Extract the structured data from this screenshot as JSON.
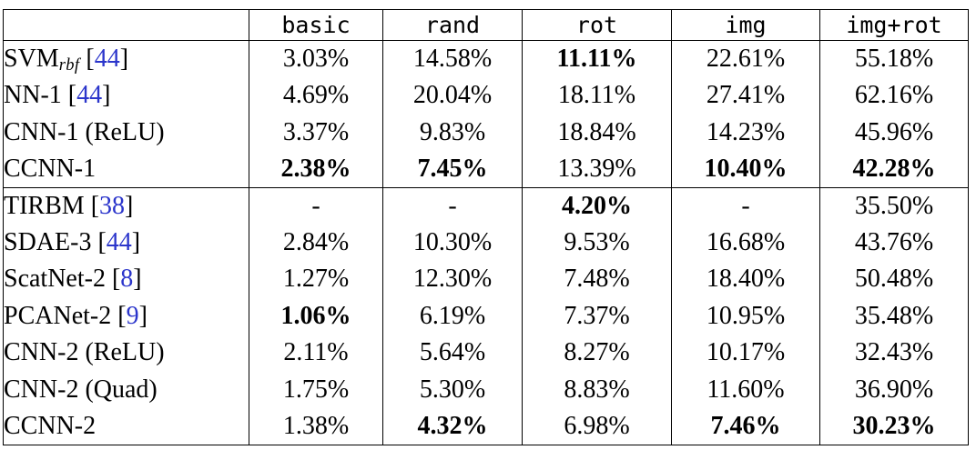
{
  "colors": {
    "text": "#000000",
    "border": "#000000",
    "citation_blue": "#2b35cb",
    "background": "#ffffff"
  },
  "citation_brackets": {
    "open": "[",
    "close": "]"
  },
  "table": {
    "corner_label": "",
    "columns": [
      "basic",
      "rand",
      "rot",
      "img",
      "img+rot"
    ],
    "groups": [
      {
        "rows": [
          {
            "label": {
              "text": "SVM",
              "subscript": "rbf",
              "citation": "44"
            },
            "cells": [
              {
                "v": "3.03%",
                "bold": false
              },
              {
                "v": "14.58%",
                "bold": false
              },
              {
                "v": "11.11%",
                "bold": true
              },
              {
                "v": "22.61%",
                "bold": false
              },
              {
                "v": "55.18%",
                "bold": false
              }
            ]
          },
          {
            "label": {
              "text": "NN-1",
              "subscript": null,
              "citation": "44"
            },
            "cells": [
              {
                "v": "4.69%",
                "bold": false
              },
              {
                "v": "20.04%",
                "bold": false
              },
              {
                "v": "18.11%",
                "bold": false
              },
              {
                "v": "27.41%",
                "bold": false
              },
              {
                "v": "62.16%",
                "bold": false
              }
            ]
          },
          {
            "label": {
              "text": "CNN-1 (ReLU)",
              "subscript": null,
              "citation": null
            },
            "cells": [
              {
                "v": "3.37%",
                "bold": false
              },
              {
                "v": "9.83%",
                "bold": false
              },
              {
                "v": "18.84%",
                "bold": false
              },
              {
                "v": "14.23%",
                "bold": false
              },
              {
                "v": "45.96%",
                "bold": false
              }
            ]
          },
          {
            "label": {
              "text": "CCNN-1",
              "subscript": null,
              "citation": null
            },
            "cells": [
              {
                "v": "2.38%",
                "bold": true
              },
              {
                "v": "7.45%",
                "bold": true
              },
              {
                "v": "13.39%",
                "bold": false
              },
              {
                "v": "10.40%",
                "bold": true
              },
              {
                "v": "42.28%",
                "bold": true
              }
            ]
          }
        ]
      },
      {
        "rows": [
          {
            "label": {
              "text": "TIRBM",
              "subscript": null,
              "citation": "38"
            },
            "cells": [
              {
                "v": "-",
                "bold": false
              },
              {
                "v": "-",
                "bold": false
              },
              {
                "v": "4.20%",
                "bold": true
              },
              {
                "v": "-",
                "bold": false
              },
              {
                "v": "35.50%",
                "bold": false
              }
            ]
          },
          {
            "label": {
              "text": "SDAE-3",
              "subscript": null,
              "citation": "44"
            },
            "cells": [
              {
                "v": "2.84%",
                "bold": false
              },
              {
                "v": "10.30%",
                "bold": false
              },
              {
                "v": "9.53%",
                "bold": false
              },
              {
                "v": "16.68%",
                "bold": false
              },
              {
                "v": "43.76%",
                "bold": false
              }
            ]
          },
          {
            "label": {
              "text": "ScatNet-2",
              "subscript": null,
              "citation": "8"
            },
            "cells": [
              {
                "v": "1.27%",
                "bold": false
              },
              {
                "v": "12.30%",
                "bold": false
              },
              {
                "v": "7.48%",
                "bold": false
              },
              {
                "v": "18.40%",
                "bold": false
              },
              {
                "v": "50.48%",
                "bold": false
              }
            ]
          },
          {
            "label": {
              "text": "PCANet-2",
              "subscript": null,
              "citation": "9"
            },
            "cells": [
              {
                "v": "1.06%",
                "bold": true
              },
              {
                "v": "6.19%",
                "bold": false
              },
              {
                "v": "7.37%",
                "bold": false
              },
              {
                "v": "10.95%",
                "bold": false
              },
              {
                "v": "35.48%",
                "bold": false
              }
            ]
          },
          {
            "label": {
              "text": "CNN-2 (ReLU)",
              "subscript": null,
              "citation": null
            },
            "cells": [
              {
                "v": "2.11%",
                "bold": false
              },
              {
                "v": "5.64%",
                "bold": false
              },
              {
                "v": "8.27%",
                "bold": false
              },
              {
                "v": "10.17%",
                "bold": false
              },
              {
                "v": "32.43%",
                "bold": false
              }
            ]
          },
          {
            "label": {
              "text": "CNN-2 (Quad)",
              "subscript": null,
              "citation": null
            },
            "cells": [
              {
                "v": "1.75%",
                "bold": false
              },
              {
                "v": "5.30%",
                "bold": false
              },
              {
                "v": "8.83%",
                "bold": false
              },
              {
                "v": "11.60%",
                "bold": false
              },
              {
                "v": "36.90%",
                "bold": false
              }
            ]
          },
          {
            "label": {
              "text": "CCNN-2",
              "subscript": null,
              "citation": null
            },
            "cells": [
              {
                "v": "1.38%",
                "bold": false
              },
              {
                "v": "4.32%",
                "bold": true
              },
              {
                "v": "6.98%",
                "bold": false
              },
              {
                "v": "7.46%",
                "bold": true
              },
              {
                "v": "30.23%",
                "bold": true
              }
            ]
          }
        ]
      }
    ]
  }
}
